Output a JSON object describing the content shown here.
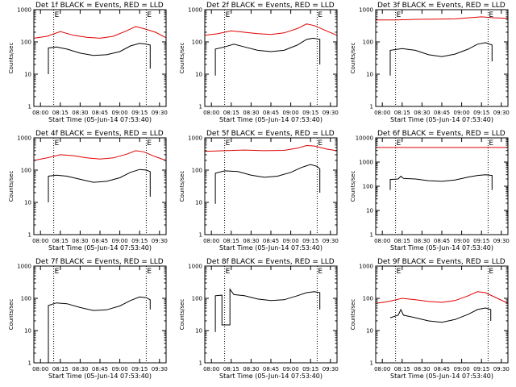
{
  "figure": {
    "background": "#ffffff"
  },
  "chart_data": [
    {
      "type": "line",
      "title": "Det 1f BLACK = Events, RED = LLD",
      "ylabel": "Counts/sec",
      "xlabel": "Start Time (05-Jun-14 07:53:40)",
      "yscale": "log",
      "ylim": [
        1,
        1000
      ],
      "yticks": [
        "1",
        "10",
        "100",
        "1000"
      ],
      "xticks": [
        "08:00",
        "08:15",
        "08:30",
        "08:45",
        "09:00",
        "09:15",
        "09:30"
      ],
      "xlim_minutes": [
        475,
        575
      ],
      "marker_label": "E",
      "marker_times": [
        490,
        560
      ],
      "series": [
        {
          "color": "#e00000",
          "points": [
            [
              475,
              130
            ],
            [
              485,
              150
            ],
            [
              495,
              210
            ],
            [
              505,
              160
            ],
            [
              515,
              140
            ],
            [
              525,
              130
            ],
            [
              535,
              150
            ],
            [
              545,
              220
            ],
            [
              552,
              300
            ],
            [
              558,
              260
            ],
            [
              567,
              200
            ],
            [
              575,
              135
            ]
          ]
        },
        {
          "color": "#000000",
          "points": [
            [
              486,
              10
            ],
            [
              486,
              65
            ],
            [
              492,
              70
            ],
            [
              500,
              60
            ],
            [
              510,
              45
            ],
            [
              520,
              38
            ],
            [
              530,
              40
            ],
            [
              540,
              50
            ],
            [
              548,
              75
            ],
            [
              555,
              90
            ],
            [
              560,
              85
            ],
            [
              563,
              80
            ],
            [
              563,
              15
            ]
          ]
        }
      ]
    },
    {
      "type": "line",
      "title": "Det 2f BLACK = Events, RED = LLD",
      "ylabel": "Counts/sec",
      "xlabel": "Start Time (05-Jun-14 07:53:40)",
      "yscale": "log",
      "ylim": [
        1,
        1000
      ],
      "yticks": [
        "1",
        "10",
        "100",
        "1000"
      ],
      "xticks": [
        "08:00",
        "08:15",
        "08:30",
        "08:45",
        "09:00",
        "09:15",
        "09:30"
      ],
      "xlim_minutes": [
        475,
        575
      ],
      "marker_label": "E",
      "marker_times": [
        490,
        560
      ],
      "series": [
        {
          "color": "#e00000",
          "points": [
            [
              475,
              160
            ],
            [
              485,
              180
            ],
            [
              495,
              220
            ],
            [
              505,
              200
            ],
            [
              515,
              180
            ],
            [
              525,
              170
            ],
            [
              535,
              190
            ],
            [
              545,
              260
            ],
            [
              552,
              360
            ],
            [
              558,
              320
            ],
            [
              567,
              220
            ],
            [
              575,
              160
            ]
          ]
        },
        {
          "color": "#000000",
          "points": [
            [
              483,
              9
            ],
            [
              483,
              60
            ],
            [
              490,
              70
            ],
            [
              497,
              85
            ],
            [
              505,
              70
            ],
            [
              515,
              55
            ],
            [
              525,
              50
            ],
            [
              535,
              55
            ],
            [
              545,
              80
            ],
            [
              552,
              120
            ],
            [
              557,
              130
            ],
            [
              562,
              120
            ],
            [
              562,
              20
            ]
          ]
        }
      ]
    },
    {
      "type": "line",
      "title": "Det 3f BLACK = Events, RED = LLD",
      "ylabel": "Counts/sec",
      "xlabel": "Start Time (05-Jun-14 07:53:40)",
      "yscale": "log",
      "ylim": [
        1,
        1000
      ],
      "yticks": [
        "1",
        "10",
        "100",
        "1000"
      ],
      "xticks": [
        "08:00",
        "08:15",
        "08:30",
        "08:45",
        "09:00",
        "09:15",
        "09:30"
      ],
      "xlim_minutes": [
        475,
        575
      ],
      "marker_label": "E",
      "marker_times": [
        490,
        560
      ],
      "series": [
        {
          "color": "#e00000",
          "points": [
            [
              475,
              480
            ],
            [
              490,
              480
            ],
            [
              505,
              500
            ],
            [
              520,
              510
            ],
            [
              535,
              520
            ],
            [
              545,
              560
            ],
            [
              555,
              600
            ],
            [
              565,
              560
            ],
            [
              575,
              540
            ]
          ]
        },
        {
          "color": "#000000",
          "points": [
            [
              486,
              9
            ],
            [
              486,
              55
            ],
            [
              495,
              62
            ],
            [
              505,
              55
            ],
            [
              515,
              40
            ],
            [
              525,
              35
            ],
            [
              535,
              42
            ],
            [
              545,
              60
            ],
            [
              552,
              85
            ],
            [
              558,
              95
            ],
            [
              563,
              80
            ],
            [
              563,
              25
            ]
          ]
        }
      ]
    },
    {
      "type": "line",
      "title": "Det 4f BLACK = Events, RED = LLD",
      "ylabel": "Counts/sec",
      "xlabel": "Start Time (05-Jun-14 07:53:40)",
      "yscale": "log",
      "ylim": [
        1,
        1000
      ],
      "yticks": [
        "1",
        "10",
        "100",
        "1000"
      ],
      "xticks": [
        "08:00",
        "08:15",
        "08:30",
        "08:45",
        "09:00",
        "09:15",
        "09:30"
      ],
      "xlim_minutes": [
        475,
        575
      ],
      "marker_label": "E",
      "marker_times": [
        490,
        560
      ],
      "series": [
        {
          "color": "#e00000",
          "points": [
            [
              475,
              200
            ],
            [
              485,
              240
            ],
            [
              495,
              300
            ],
            [
              505,
              280
            ],
            [
              515,
              240
            ],
            [
              525,
              220
            ],
            [
              535,
              240
            ],
            [
              545,
              310
            ],
            [
              552,
              400
            ],
            [
              558,
              370
            ],
            [
              567,
              260
            ],
            [
              575,
              200
            ]
          ]
        },
        {
          "color": "#000000",
          "points": [
            [
              486,
              10
            ],
            [
              486,
              65
            ],
            [
              492,
              70
            ],
            [
              500,
              65
            ],
            [
              510,
              52
            ],
            [
              520,
              42
            ],
            [
              530,
              45
            ],
            [
              540,
              58
            ],
            [
              548,
              85
            ],
            [
              555,
              105
            ],
            [
              560,
              100
            ],
            [
              563,
              90
            ],
            [
              563,
              15
            ]
          ]
        }
      ]
    },
    {
      "type": "line",
      "title": "Det 5f BLACK = Events, RED = LLD",
      "ylabel": "Counts/sec",
      "xlabel": "Start Time (05-Jun-14 07:53:40)",
      "yscale": "log",
      "ylim": [
        1,
        1000
      ],
      "yticks": [
        "1",
        "10",
        "100",
        "1000"
      ],
      "xticks": [
        "08:00",
        "08:15",
        "08:30",
        "08:45",
        "09:00",
        "09:15",
        "09:30"
      ],
      "xlim_minutes": [
        475,
        575
      ],
      "marker_label": "E",
      "marker_times": [
        490,
        560
      ],
      "series": [
        {
          "color": "#e00000",
          "points": [
            [
              475,
              380
            ],
            [
              490,
              400
            ],
            [
              505,
              420
            ],
            [
              520,
              400
            ],
            [
              535,
              410
            ],
            [
              545,
              480
            ],
            [
              552,
              580
            ],
            [
              558,
              560
            ],
            [
              567,
              450
            ],
            [
              575,
              400
            ]
          ]
        },
        {
          "color": "#000000",
          "points": [
            [
              483,
              9
            ],
            [
              483,
              80
            ],
            [
              490,
              95
            ],
            [
              500,
              90
            ],
            [
              510,
              70
            ],
            [
              520,
              60
            ],
            [
              530,
              65
            ],
            [
              540,
              85
            ],
            [
              548,
              120
            ],
            [
              555,
              150
            ],
            [
              560,
              130
            ],
            [
              562,
              110
            ],
            [
              562,
              20
            ]
          ]
        }
      ]
    },
    {
      "type": "line",
      "title": "Det 6f BLACK = Events, RED = LLD",
      "ylabel": "Counts/sec",
      "xlabel": "Start Time (05-Jun-14 07:53:40)",
      "yscale": "log",
      "ylim": [
        1,
        10000
      ],
      "yticks": [
        "1",
        "10",
        "100",
        "1000",
        "10000"
      ],
      "xticks": [
        "08:00",
        "08:15",
        "08:30",
        "08:45",
        "09:00",
        "09:15",
        "09:30"
      ],
      "xlim_minutes": [
        475,
        575
      ],
      "marker_label": "E",
      "marker_times": [
        490,
        560
      ],
      "series": [
        {
          "color": "#e00000",
          "points": [
            [
              475,
              4000
            ],
            [
              575,
              4000
            ]
          ]
        },
        {
          "color": "#000000",
          "points": [
            [
              486,
              70
            ],
            [
              486,
              190
            ],
            [
              492,
              200
            ],
            [
              494,
              260
            ],
            [
              496,
              210
            ],
            [
              505,
              200
            ],
            [
              515,
              170
            ],
            [
              525,
              160
            ],
            [
              535,
              180
            ],
            [
              545,
              240
            ],
            [
              552,
              280
            ],
            [
              558,
              300
            ],
            [
              563,
              280
            ],
            [
              563,
              70
            ]
          ]
        }
      ]
    },
    {
      "type": "line",
      "title": "Det 7f BLACK = Events, RED = LLD",
      "ylabel": "Counts/sec",
      "xlabel": "Start Time (05-Jun-14 07:53:40)",
      "yscale": "log",
      "ylim": [
        1,
        1000
      ],
      "yticks": [
        "1",
        "10",
        "100",
        "1000"
      ],
      "xticks": [
        "08:00",
        "08:15",
        "08:30",
        "08:45",
        "09:00",
        "09:15",
        "09:30"
      ],
      "xlim_minutes": [
        475,
        575
      ],
      "marker_label": "E",
      "marker_times": [
        490,
        560
      ],
      "series": [
        {
          "color": "#e00000",
          "points": [
            [
              475,
              1000
            ],
            [
              500,
              1000
            ],
            [
              525,
              1000
            ],
            [
              550,
              1000
            ],
            [
              575,
              1000
            ]
          ]
        },
        {
          "color": "#000000",
          "points": [
            [
              486,
              1
            ],
            [
              486,
              60
            ],
            [
              492,
              72
            ],
            [
              500,
              68
            ],
            [
              510,
              52
            ],
            [
              520,
              42
            ],
            [
              530,
              44
            ],
            [
              540,
              58
            ],
            [
              548,
              85
            ],
            [
              555,
              110
            ],
            [
              560,
              105
            ],
            [
              563,
              90
            ],
            [
              563,
              45
            ]
          ]
        }
      ]
    },
    {
      "type": "line",
      "title": "Det 8f BLACK = Events, RED = LLD",
      "ylabel": "Counts/sec",
      "xlabel": "Start Time (05-Jun-14 07:53:40)",
      "yscale": "log",
      "ylim": [
        1,
        1000
      ],
      "yticks": [
        "1",
        "10",
        "100",
        "1000"
      ],
      "xticks": [
        "08:00",
        "08:15",
        "08:30",
        "08:45",
        "09:00",
        "09:15",
        "09:30"
      ],
      "xlim_minutes": [
        475,
        575
      ],
      "marker_label": "E",
      "marker_times": [
        490,
        560
      ],
      "series": [
        {
          "color": "#000000",
          "points": [
            [
              483,
              9
            ],
            [
              483,
              120
            ],
            [
              488,
              125
            ],
            [
              488,
              15
            ],
            [
              494,
              15
            ],
            [
              494,
              190
            ],
            [
              497,
              130
            ],
            [
              505,
              120
            ],
            [
              515,
              95
            ],
            [
              525,
              85
            ],
            [
              535,
              90
            ],
            [
              545,
              120
            ],
            [
              552,
              150
            ],
            [
              558,
              160
            ],
            [
              562,
              150
            ],
            [
              562,
              45
            ]
          ]
        }
      ]
    },
    {
      "type": "line",
      "title": "Det 9f BLACK = Events, RED = LLD",
      "ylabel": "Counts/sec",
      "xlabel": "Start Time (05-Jun-14 07:53:40)",
      "yscale": "log",
      "ylim": [
        1,
        1000
      ],
      "yticks": [
        "1",
        "10",
        "100",
        "1000"
      ],
      "xticks": [
        "08:00",
        "08:15",
        "08:30",
        "08:45",
        "09:00",
        "09:15",
        "09:30"
      ],
      "xlim_minutes": [
        475,
        575
      ],
      "marker_label": "E",
      "marker_times": [
        490,
        560
      ],
      "series": [
        {
          "color": "#e00000",
          "points": [
            [
              475,
              70
            ],
            [
              485,
              80
            ],
            [
              495,
              100
            ],
            [
              505,
              90
            ],
            [
              515,
              80
            ],
            [
              525,
              75
            ],
            [
              535,
              85
            ],
            [
              545,
              120
            ],
            [
              552,
              160
            ],
            [
              558,
              150
            ],
            [
              567,
              100
            ],
            [
              575,
              70
            ]
          ]
        },
        {
          "color": "#000000",
          "points": [
            [
              486,
              25
            ],
            [
              492,
              30
            ],
            [
              494,
              45
            ],
            [
              496,
              30
            ],
            [
              505,
              25
            ],
            [
              515,
              20
            ],
            [
              525,
              18
            ],
            [
              535,
              22
            ],
            [
              545,
              32
            ],
            [
              552,
              45
            ],
            [
              558,
              50
            ],
            [
              562,
              45
            ],
            [
              562,
              20
            ]
          ]
        }
      ]
    }
  ]
}
